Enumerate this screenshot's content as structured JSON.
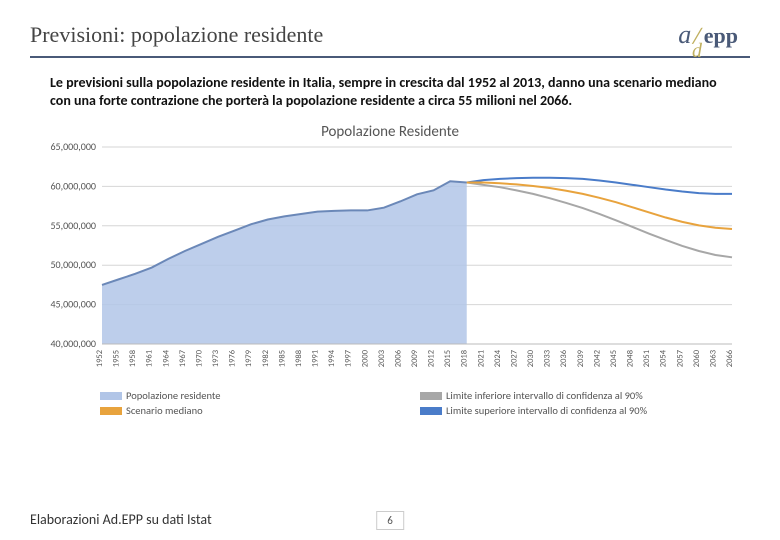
{
  "header": {
    "title": "Previsioni: popolazione residente",
    "logo": {
      "a": "a",
      "slash": "/",
      "epp": "epp",
      "d": "d"
    }
  },
  "description": "Le previsioni sulla popolazione residente in Italia, sempre in crescita dal 1952 al 2013, danno una scenario mediano con una forte contrazione che porterà la popolazione residente a circa 55 milioni nel 2066.",
  "chart": {
    "title": "Popolazione Residente",
    "type": "line-area",
    "ylim": [
      40000000,
      65000000
    ],
    "ytick_step": 5000000,
    "ytick_labels": [
      "40,000,000",
      "45,000,000",
      "50,000,000",
      "55,000,000",
      "60,000,000",
      "65,000,000"
    ],
    "x_years": [
      1952,
      1955,
      1958,
      1961,
      1964,
      1967,
      1970,
      1973,
      1976,
      1979,
      1982,
      1985,
      1988,
      1991,
      1994,
      1997,
      2000,
      2003,
      2006,
      2009,
      2012,
      2015,
      2018,
      2021,
      2024,
      2027,
      2030,
      2033,
      2036,
      2039,
      2042,
      2045,
      2048,
      2051,
      2054,
      2057,
      2060,
      2063,
      2066
    ],
    "colors": {
      "area_fill": "#b1c5e7",
      "residente": "#b1c5e7",
      "residente_stroke": "#6b88b8",
      "mediano": "#e8a33d",
      "lower90": "#a7a7a7",
      "upper90": "#4a7cc9",
      "grid": "#d6d6d6",
      "axis": "#bbbbbb",
      "background": "#ffffff"
    },
    "line_width": 2,
    "series": {
      "residente": {
        "end_year": 2018,
        "values": [
          47500000,
          48200000,
          48900000,
          49700000,
          50800000,
          51800000,
          52700000,
          53600000,
          54400000,
          55200000,
          55800000,
          56200000,
          56500000,
          56800000,
          56900000,
          56950000,
          56950000,
          57300000,
          58100000,
          59000000,
          59500000,
          60650000,
          60500000
        ]
      },
      "mediano": {
        "start_year": 2018,
        "values": [
          60500000,
          60500000,
          60400000,
          60250000,
          60050000,
          59800000,
          59450000,
          59050000,
          58550000,
          58000000,
          57350000,
          56700000,
          56050000,
          55500000,
          55050000,
          54750000,
          54600000
        ]
      },
      "lower90": {
        "start_year": 2018,
        "values": [
          60500000,
          60200000,
          59900000,
          59500000,
          59050000,
          58500000,
          57900000,
          57250000,
          56500000,
          55700000,
          54850000,
          54000000,
          53200000,
          52450000,
          51800000,
          51300000,
          51000000
        ]
      },
      "upper90": {
        "start_year": 2018,
        "values": [
          60500000,
          60800000,
          60950000,
          61050000,
          61100000,
          61100000,
          61050000,
          60950000,
          60750000,
          60500000,
          60200000,
          59900000,
          59600000,
          59350000,
          59150000,
          59050000,
          59050000
        ]
      }
    },
    "legend": [
      {
        "label": "Popolazione residente",
        "color": "#b1c5e7"
      },
      {
        "label": "Limite inferiore intervallo di confidenza al 90%",
        "color": "#a7a7a7"
      },
      {
        "label": "Scenario mediano",
        "color": "#e8a33d"
      },
      {
        "label": "Limite superiore intervallo di confidenza al 90%",
        "color": "#4a7cc9"
      }
    ]
  },
  "source": "Elaborazioni Ad.EPP su dati Istat",
  "page_number": "6"
}
